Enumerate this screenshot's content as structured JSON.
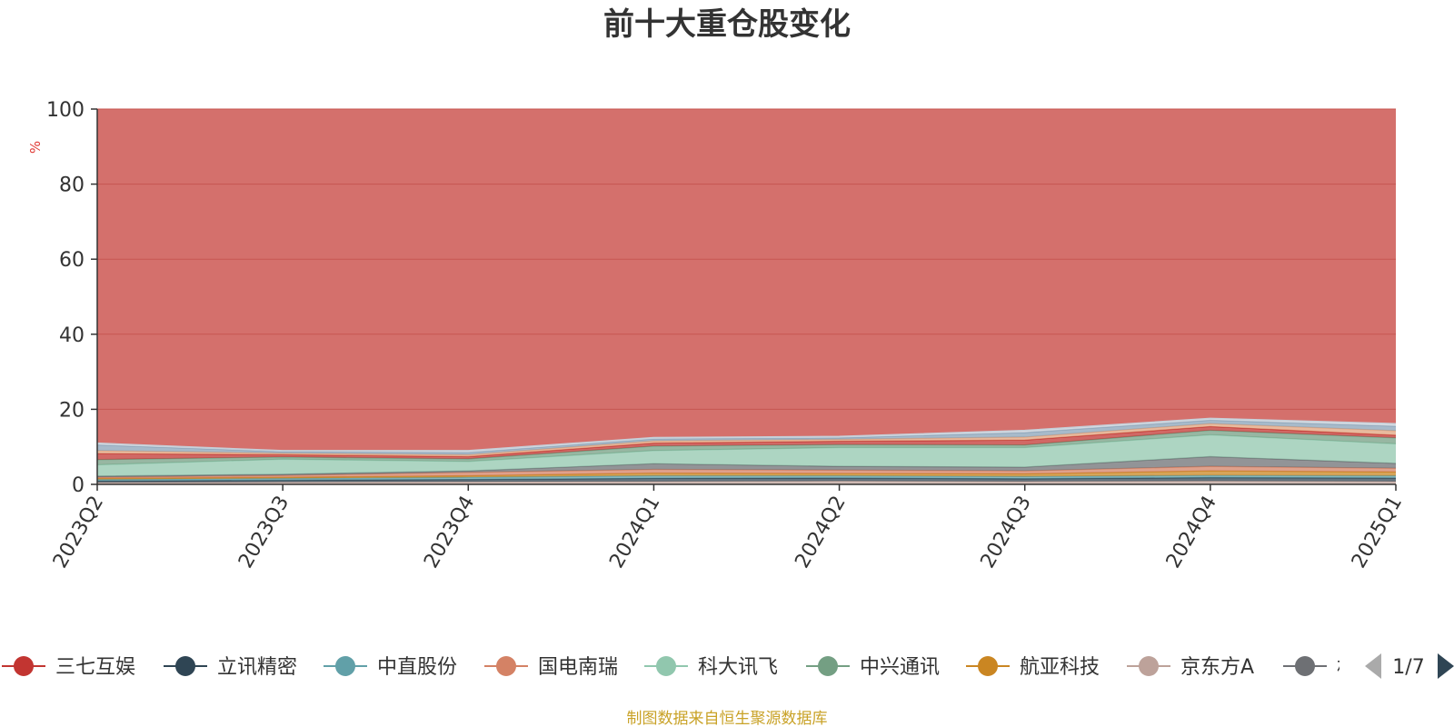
{
  "colors": {
    "remainder": "#d4706c",
    "grid": "#c75651",
    "axis": "#333333",
    "unit": "#e03a36",
    "source": "#c9a227",
    "pager_active": "#2f4554",
    "pager_inactive": "#aaaaaa"
  },
  "legend": {
    "page_label": "1/7",
    "items": [
      {
        "name": "三七互娱",
        "color": "#c23531"
      },
      {
        "name": "立讯精密",
        "color": "#2f4554"
      },
      {
        "name": "中直股份",
        "color": "#61a0a8"
      },
      {
        "name": "国电南瑞",
        "color": "#d48265"
      },
      {
        "name": "科大讯飞",
        "color": "#91c7ae"
      },
      {
        "name": "中兴通讯",
        "color": "#749f83"
      },
      {
        "name": "航亚科技",
        "color": "#ca8622"
      },
      {
        "name": "京东方A",
        "color": "#bda29a"
      },
      {
        "name": "相",
        "color": "#6e7074"
      }
    ]
  },
  "source_note": "制图数据来自恒生聚源数据库",
  "chart_data": {
    "type": "area",
    "stacked": true,
    "title": "前十大重仓股变化",
    "ylabel": "%",
    "ylim": [
      0,
      100
    ],
    "yticks": [
      0,
      20,
      40,
      60,
      80,
      100
    ],
    "grid": true,
    "legend_position": "bottom",
    "categories": [
      "2023Q2",
      "2023Q3",
      "2023Q4",
      "2024Q1",
      "2024Q2",
      "2024Q3",
      "2024Q4",
      "2025Q1"
    ],
    "series": [
      {
        "name": "京东方A",
        "color": "#bda29a",
        "values": [
          0.5,
          0.6,
          0.7,
          0.8,
          0.9,
          0.8,
          0.9,
          0.8
        ]
      },
      {
        "name": "立讯精密",
        "color": "#2f4554",
        "values": [
          0.4,
          0.5,
          0.6,
          0.8,
          0.8,
          0.7,
          0.9,
          0.9
        ]
      },
      {
        "name": "中直股份",
        "color": "#61a0a8",
        "values": [
          0.4,
          0.5,
          0.6,
          0.7,
          0.6,
          0.6,
          0.6,
          0.6
        ]
      },
      {
        "name": "航亚科技",
        "color": "#ca8622",
        "values": [
          0.3,
          0.3,
          0.4,
          0.7,
          0.6,
          0.7,
          1.2,
          1.0
        ]
      },
      {
        "name": "国电南瑞",
        "color": "#d48265",
        "values": [
          0.3,
          0.5,
          0.9,
          1.0,
          0.9,
          0.8,
          1.2,
          1.0
        ]
      },
      {
        "name": "相",
        "color": "#6e7074",
        "values": [
          0.3,
          0.3,
          0.4,
          1.5,
          1.0,
          1.0,
          2.6,
          1.3
        ]
      },
      {
        "name": "科大讯飞",
        "color": "#91c7ae",
        "values": [
          3.0,
          4.0,
          2.5,
          3.5,
          5.0,
          5.2,
          5.8,
          5.2
        ]
      },
      {
        "name": "中兴通讯",
        "color": "#749f83",
        "values": [
          1.4,
          0.6,
          0.7,
          1.2,
          0.8,
          0.7,
          1.2,
          1.6
        ]
      },
      {
        "name": "三七互娱",
        "color": "#c23531",
        "values": [
          1.6,
          0.6,
          0.6,
          0.8,
          0.9,
          1.3,
          1.0,
          0.7
        ]
      },
      {
        "name": "",
        "color": "#e0a37d",
        "values": [
          0.8,
          0.4,
          0.5,
          0.6,
          0.5,
          0.8,
          0.8,
          1.2
        ]
      },
      {
        "name": "",
        "color": "#8aa3b8",
        "values": [
          1.5,
          0.4,
          0.6,
          0.5,
          0.4,
          1.2,
          0.9,
          1.2
        ]
      },
      {
        "name": "",
        "color": "#c5cfd8",
        "values": [
          0.5,
          0.3,
          0.5,
          0.4,
          0.4,
          0.6,
          0.5,
          0.7
        ]
      }
    ]
  }
}
